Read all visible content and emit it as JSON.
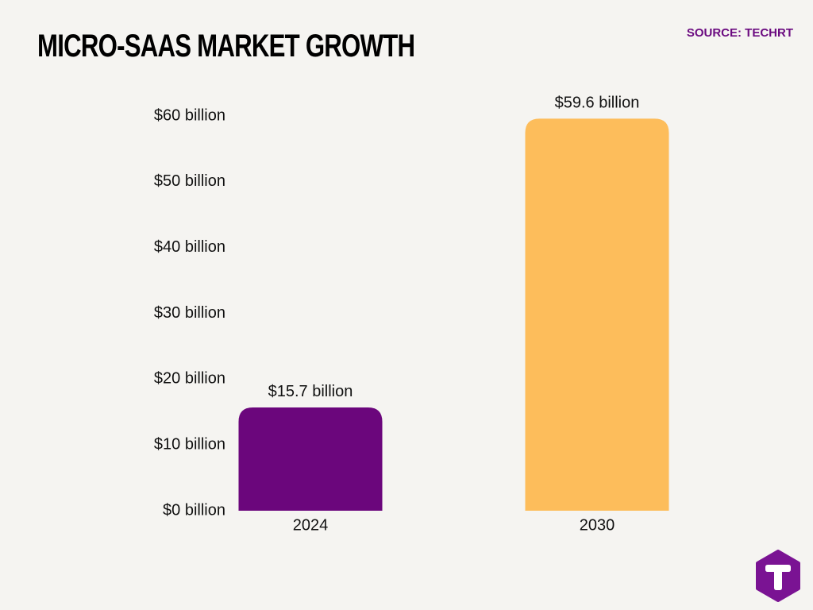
{
  "header": {
    "title": "MICRO-SAAS MARKET GROWTH",
    "source": "SOURCE: TECHRT"
  },
  "colors": {
    "background": "#f5f4f1",
    "bar_2024": "#6b067c",
    "bar_2030": "#fdbd5b",
    "text": "#111111",
    "source": "#6b0b80",
    "logo": "#7a1393"
  },
  "logo": {
    "icon": "letter-t-hexagon-logo",
    "letter": "T"
  },
  "chart_data": {
    "type": "bar",
    "categories": [
      "2024",
      "2030"
    ],
    "values": [
      15.7,
      59.6
    ],
    "value_labels": [
      "$15.7 billion",
      "$59.6 billion"
    ],
    "bar_colors": [
      "#6b067c",
      "#fdbd5b"
    ],
    "yticks": [
      0,
      10,
      20,
      30,
      40,
      50,
      60
    ],
    "ytick_labels": [
      "$0 billion",
      "$10 billion",
      "$20 billion",
      "$30 billion",
      "$40 billion",
      "$50 billion",
      "$60 billion"
    ],
    "ylim": [
      0,
      60
    ],
    "grid": false,
    "legend": "none",
    "title": "MICRO-SAAS MARKET GROWTH",
    "xlabel": "",
    "ylabel": ""
  }
}
